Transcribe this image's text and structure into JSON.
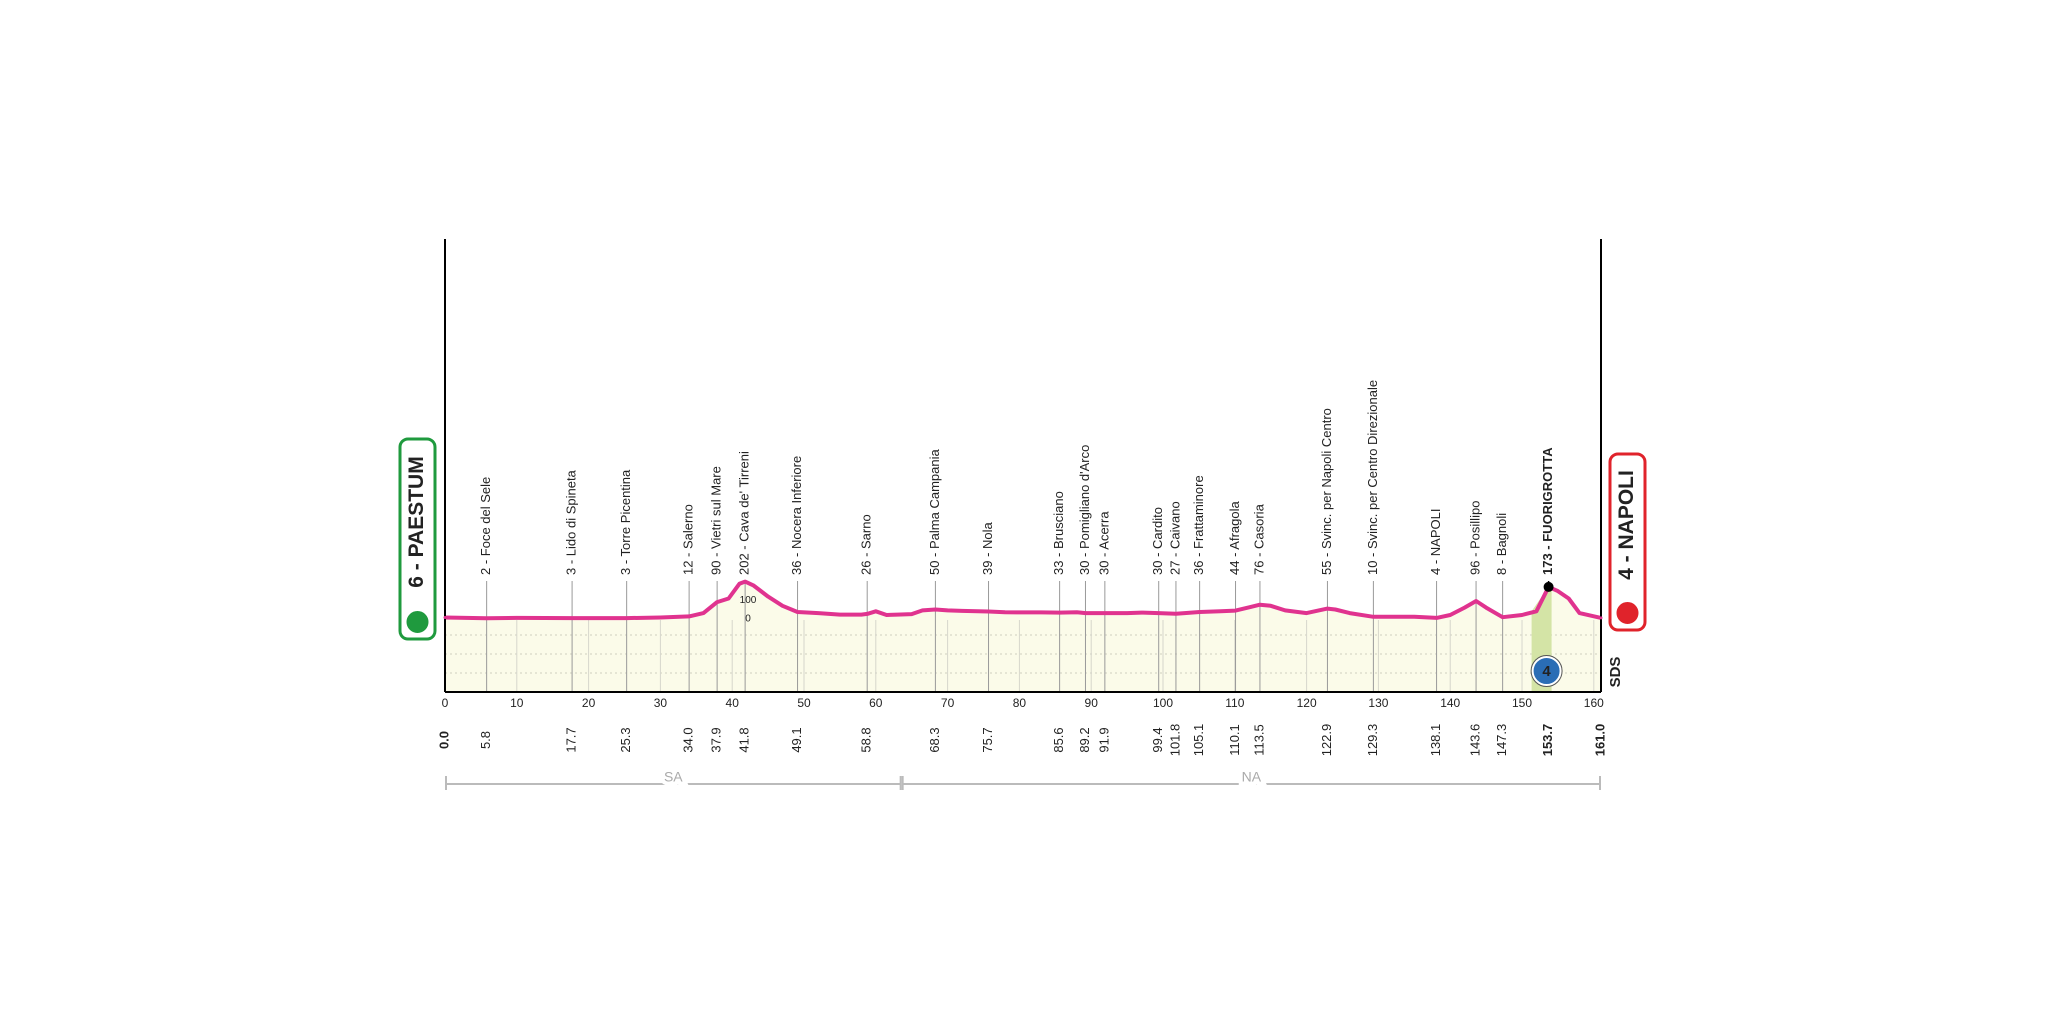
{
  "chart_data": {
    "type": "line",
    "xlim": [
      0,
      161
    ],
    "ylim": [
      -400,
      2070
    ],
    "xticks": [
      0,
      10,
      20,
      30,
      40,
      50,
      60,
      70,
      80,
      90,
      100,
      110,
      120,
      130,
      140,
      150,
      160
    ],
    "yticks": [
      0,
      100
    ],
    "color": "#e0338f",
    "fill_color": "#fbfbe9",
    "start": {
      "label": "6 - PAESTUM",
      "km": {
        "value": 0,
        "label": "0.0"
      },
      "elevation": 6,
      "color": "#1f9a3e"
    },
    "finish": {
      "label": "4 - NAPOLI",
      "km": {
        "value": 161,
        "label": "161.0"
      },
      "elevation": 4,
      "color": "#e0232b"
    },
    "waypoints": [
      {
        "label": "2 - Foce del Sele",
        "km": 5.8,
        "elevation": 2
      },
      {
        "label": "3 - Lido di Spineta",
        "km": 17.7,
        "elevation": 3
      },
      {
        "label": "3 - Torre Picentina",
        "km": 25.3,
        "elevation": 3
      },
      {
        "label": "12 - Salerno",
        "km": {
          "value": 34,
          "label": "34.0"
        },
        "elevation": 12
      },
      {
        "label": "90 - Vietri sul Mare",
        "km": 37.9,
        "elevation": 90
      },
      {
        "label": "202 - Cava de' Tirreni",
        "km": 41.8,
        "elevation": 202
      },
      {
        "label": "36 - Nocera Inferiore",
        "km": 49.1,
        "elevation": 36
      },
      {
        "label": "26 - Sarno",
        "km": 58.8,
        "elevation": 26
      },
      {
        "label": "50 - Palma Campania",
        "km": 68.3,
        "elevation": 50
      },
      {
        "label": "39 - Nola",
        "km": 75.7,
        "elevation": 39
      },
      {
        "label": "33 - Brusciano",
        "km": 85.6,
        "elevation": 33
      },
      {
        "label": "30 - Pomigliano d'Arco",
        "km": 89.2,
        "elevation": 30
      },
      {
        "label": "30 - Acerra",
        "km": 91.9,
        "elevation": 30
      },
      {
        "label": "30 - Cardito",
        "km": 99.4,
        "elevation": 30
      },
      {
        "label": "27 - Caivano",
        "km": 101.8,
        "elevation": 27
      },
      {
        "label": "36 - Frattaminore",
        "km": 105.1,
        "elevation": 36
      },
      {
        "label": "44 - Afragola",
        "km": 110.1,
        "elevation": 44
      },
      {
        "label": "76 - Casoria",
        "km": 113.5,
        "elevation": 76
      },
      {
        "label": "55 - Svinc. per Napoli Centro",
        "km": 122.9,
        "elevation": 55
      },
      {
        "label": "10 - Svinc. per Centro Direzionale",
        "km": 129.3,
        "elevation": 10
      },
      {
        "label": "4 - NAPOLI",
        "km": 138.1,
        "elevation": 4
      },
      {
        "label": "96 - Posillipo",
        "km": 143.6,
        "elevation": 96
      },
      {
        "label": "8 - Bagnoli",
        "km": 147.3,
        "elevation": 8
      },
      {
        "label": "173 - FUORIGROTTA",
        "km": 153.7,
        "elevation": 173,
        "bold": true,
        "category": "4"
      }
    ],
    "profile": {
      "km": [
        0,
        5.8,
        10,
        17.7,
        25.3,
        30,
        34,
        36,
        37.9,
        39.5,
        41,
        41.8,
        43,
        45,
        47,
        49.1,
        52,
        55,
        58,
        58.8,
        60,
        61.5,
        63,
        65,
        66.5,
        68.3,
        70,
        72,
        75.7,
        78,
        80,
        83,
        85.6,
        88,
        89.2,
        91.9,
        95,
        97,
        99.4,
        101.8,
        103,
        105.1,
        108,
        110.1,
        112,
        113.5,
        115,
        117,
        120,
        122.9,
        124,
        126,
        129.3,
        132,
        135,
        138.1,
        140,
        142,
        143.6,
        145,
        147.3,
        150,
        152,
        153.7,
        155,
        156.5,
        158,
        161
      ],
      "elevation": [
        6,
        2,
        4,
        3,
        3,
        6,
        12,
        30,
        90,
        110,
        190,
        202,
        180,
        120,
        70,
        36,
        30,
        22,
        22,
        26,
        40,
        20,
        22,
        25,
        45,
        50,
        45,
        42,
        39,
        35,
        34,
        34,
        33,
        35,
        30,
        30,
        30,
        33,
        30,
        27,
        30,
        36,
        40,
        44,
        62,
        76,
        70,
        45,
        30,
        55,
        50,
        30,
        10,
        10,
        10,
        4,
        20,
        60,
        96,
        60,
        8,
        20,
        40,
        173,
        150,
        110,
        30,
        4
      ]
    },
    "provinces": [
      {
        "name": "SA",
        "km": [
          0,
          63.6
        ]
      },
      {
        "name": "NA",
        "km": [
          63.6,
          161
        ]
      }
    ],
    "credit": "SDS"
  }
}
